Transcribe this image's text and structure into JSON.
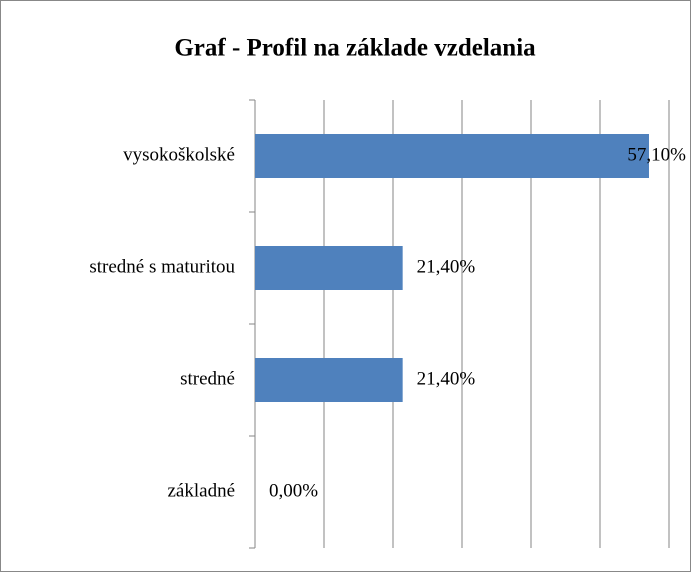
{
  "chart_data": {
    "type": "barh",
    "title": "Graf - Profil na základe vzdelania",
    "categories": [
      "vysokoškolské",
      "stredné s maturitou",
      "stredné",
      "základné"
    ],
    "values": [
      57.1,
      21.4,
      21.4,
      0
    ],
    "value_labels": [
      "57,10%",
      "21,40%",
      "21,40%",
      "0,00%"
    ],
    "color": "#4f81bd",
    "xlim": [
      0,
      60
    ],
    "xticks": [
      0,
      10,
      20,
      30,
      40,
      50,
      60
    ],
    "grid": true
  }
}
